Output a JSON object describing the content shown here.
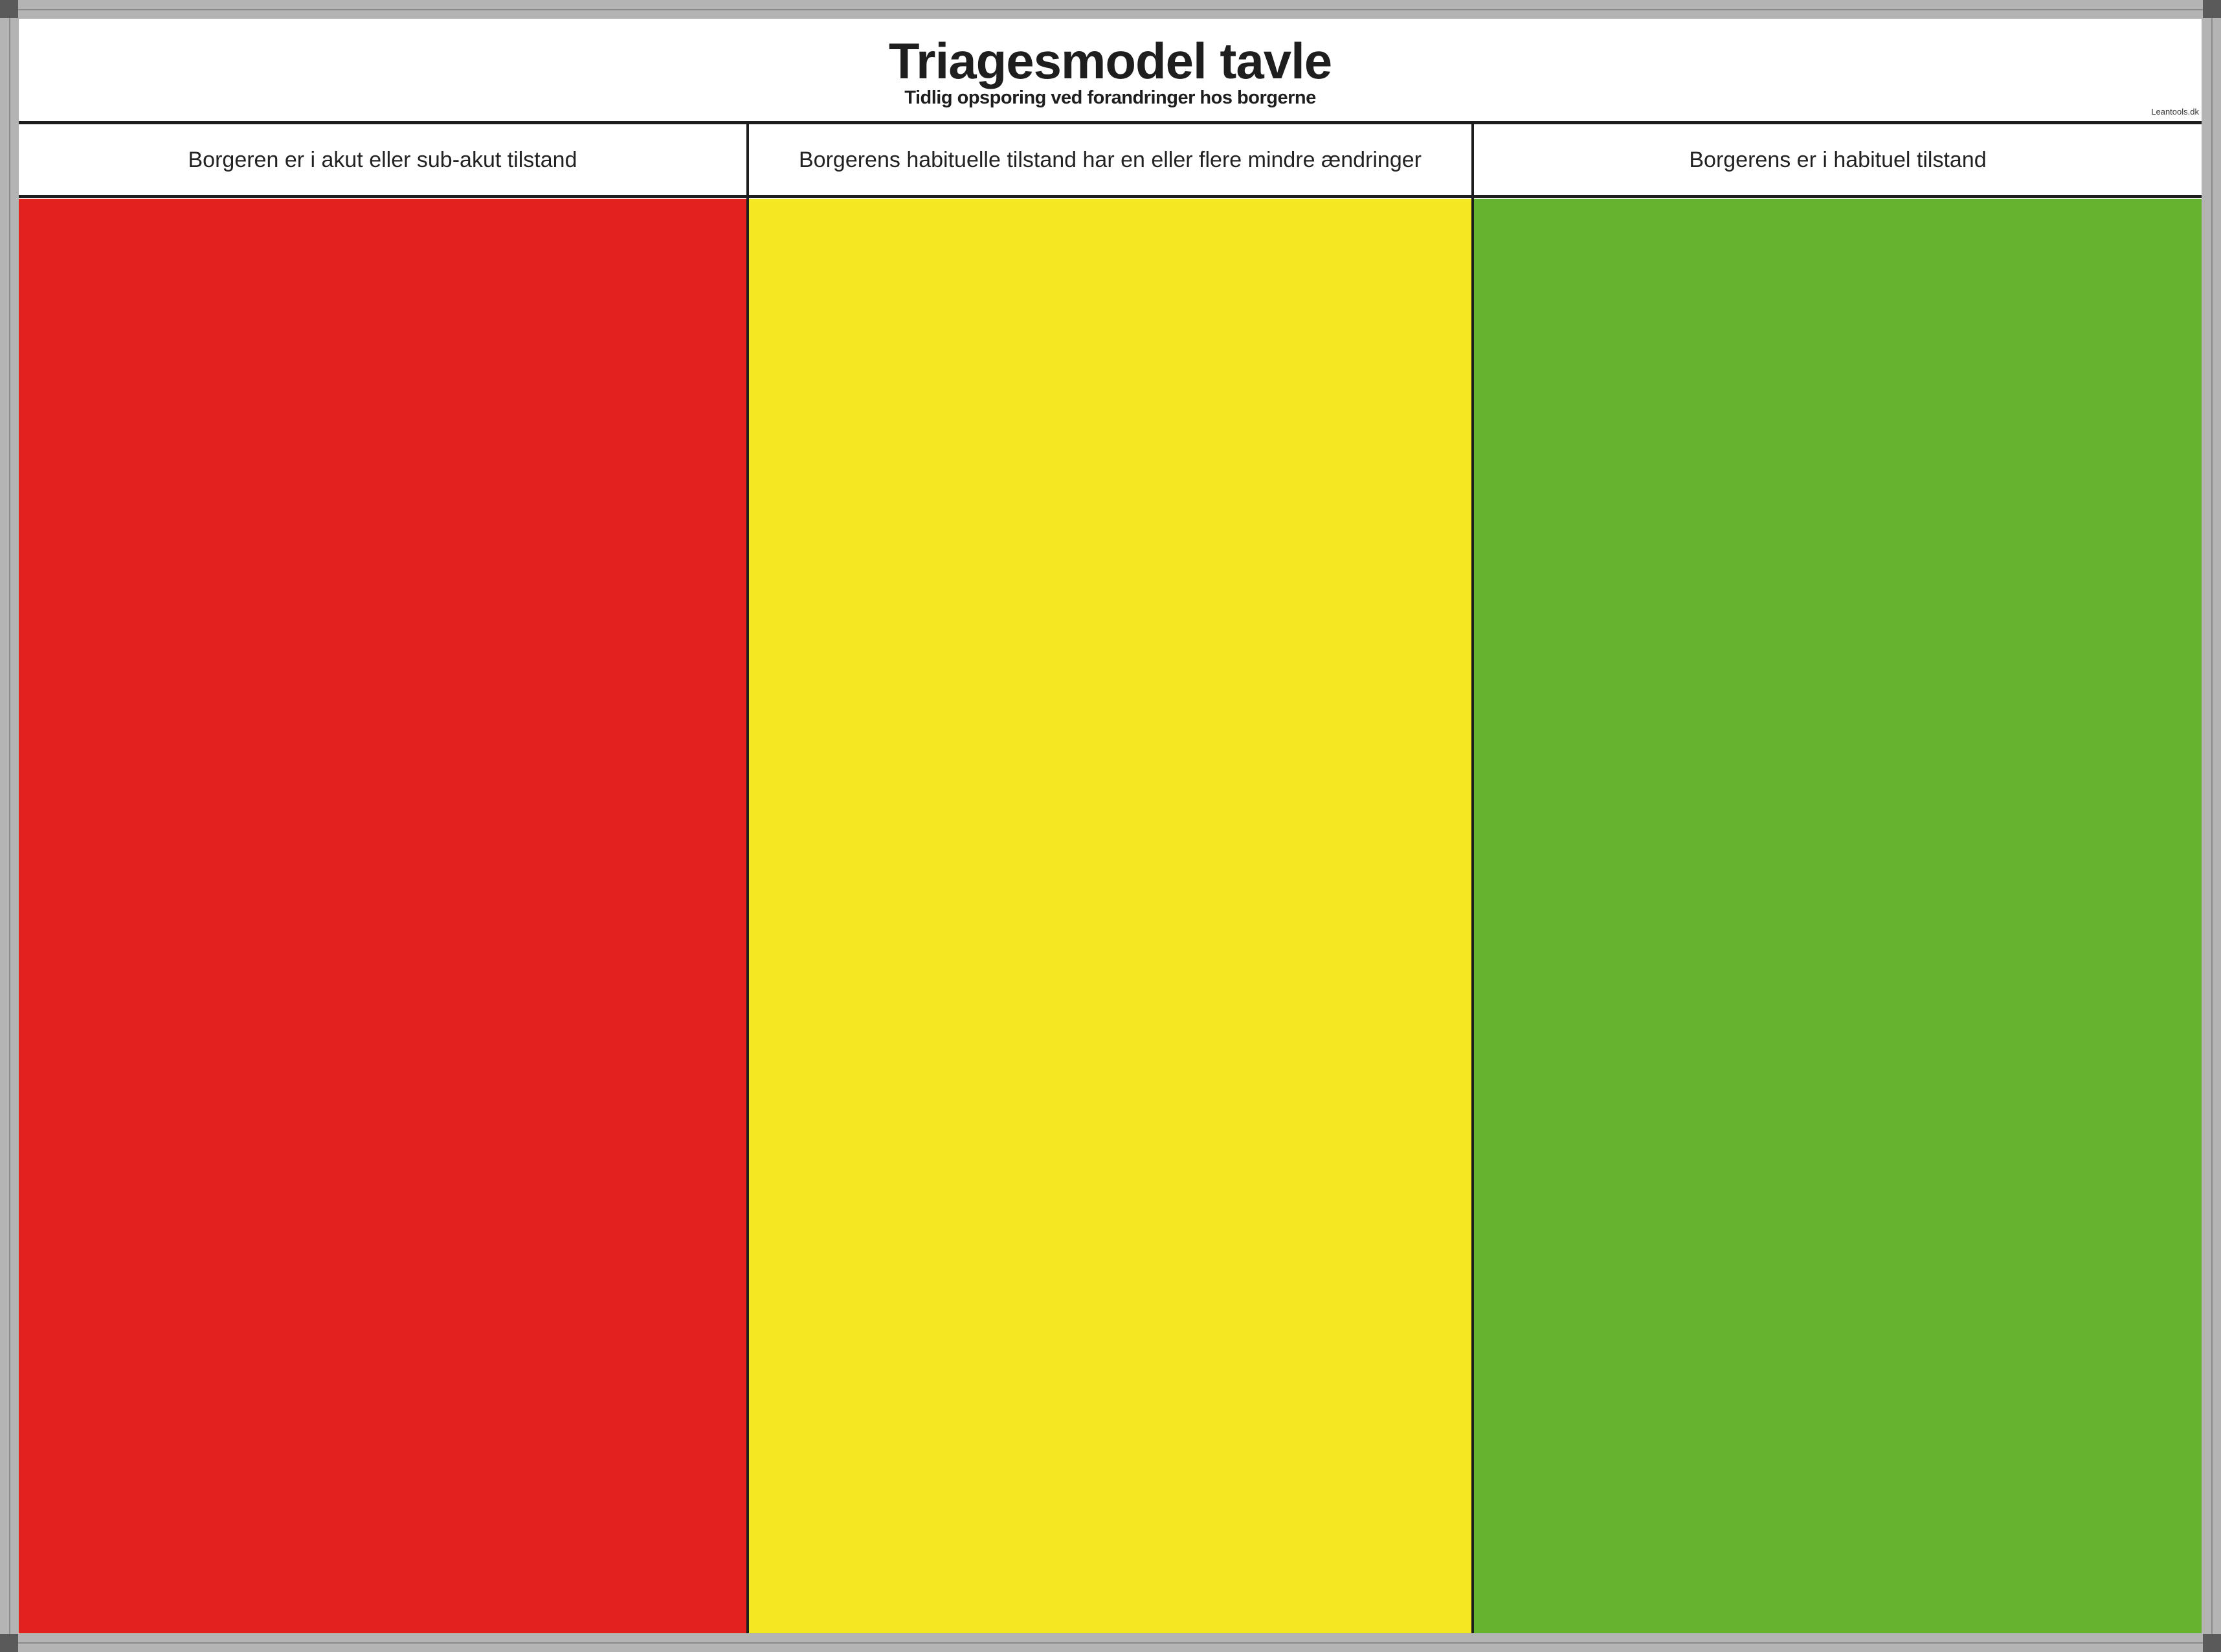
{
  "board": {
    "title": "Triagesmodel tavle",
    "subtitle": "Tidlig opsporing ved forandringer hos borgerne",
    "brand": "Leantools.dk"
  },
  "columns": [
    {
      "label": "Borgeren er i akut eller sub-akut tilstand",
      "color": "#e32220"
    },
    {
      "label": "Borgerens habituelle tilstand har en eller flere  mindre ændringer",
      "color": "#f4e823"
    },
    {
      "label": "Borgerens er i habituel tilstand",
      "color": "#65b32e"
    }
  ],
  "frame_color": "#b4b4b4"
}
